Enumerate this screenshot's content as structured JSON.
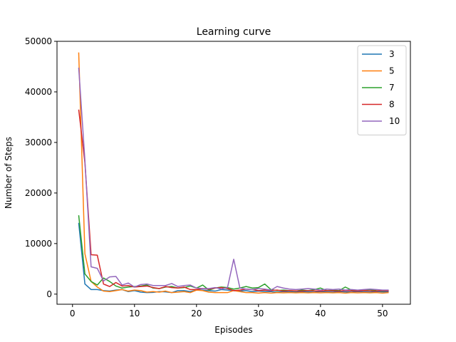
{
  "chart_data": {
    "type": "line",
    "title": "Learning curve",
    "xlabel": "Episodes",
    "ylabel": "Number of Steps",
    "xlim": [
      -2.5,
      54.5
    ],
    "ylim": [
      -2000,
      50000
    ],
    "xticks": [
      0,
      10,
      20,
      30,
      40,
      50
    ],
    "yticks": [
      0,
      10000,
      20000,
      30000,
      40000,
      50000
    ],
    "grid": false,
    "legend_position": "top-right",
    "x": [
      1,
      2,
      3,
      4,
      5,
      6,
      7,
      8,
      9,
      10,
      11,
      12,
      13,
      14,
      15,
      16,
      17,
      18,
      19,
      20,
      21,
      22,
      23,
      24,
      25,
      26,
      27,
      28,
      29,
      30,
      31,
      32,
      33,
      34,
      35,
      36,
      37,
      38,
      39,
      40,
      41,
      42,
      43,
      44,
      45,
      46,
      47,
      48,
      49,
      50,
      51
    ],
    "series": [
      {
        "name": "3",
        "color": "#1f77b4",
        "values": [
          14100,
          2000,
          900,
          900,
          700,
          600,
          800,
          900,
          500,
          700,
          400,
          300,
          350,
          500,
          450,
          300,
          700,
          700,
          500,
          800,
          800,
          700,
          600,
          900,
          800,
          700,
          600,
          700,
          500,
          600,
          500,
          500,
          400,
          500,
          450,
          400,
          500,
          450,
          400,
          500,
          450,
          400,
          500,
          450,
          400,
          500,
          450,
          400,
          500,
          450,
          450
        ]
      },
      {
        "name": "5",
        "color": "#ff7f0e",
        "values": [
          47800,
          8000,
          2500,
          1400,
          600,
          500,
          700,
          900,
          600,
          800,
          700,
          400,
          500,
          400,
          600,
          300,
          400,
          500,
          300,
          800,
          700,
          400,
          300,
          300,
          300,
          700,
          500,
          300,
          300,
          200,
          300,
          200,
          300,
          250,
          300,
          250,
          300,
          250,
          300,
          250,
          300,
          250,
          300,
          200,
          300,
          250,
          300,
          250,
          300,
          200,
          300
        ]
      },
      {
        "name": "7",
        "color": "#2ca02c",
        "values": [
          15600,
          4000,
          2500,
          1800,
          3200,
          2500,
          1600,
          1200,
          1400,
          1500,
          1600,
          1800,
          1200,
          1100,
          1400,
          1500,
          1200,
          1300,
          1600,
          1200,
          1800,
          800,
          1200,
          1400,
          1300,
          1000,
          1200,
          1500,
          1200,
          1300,
          2000,
          900,
          700,
          800,
          700,
          600,
          800,
          700,
          900,
          1200,
          700,
          800,
          700,
          1400,
          800,
          700,
          800,
          900,
          700,
          600,
          700
        ]
      },
      {
        "name": "8",
        "color": "#d62728",
        "values": [
          36500,
          26000,
          7800,
          7700,
          2000,
          1500,
          2300,
          1600,
          1700,
          1400,
          1500,
          1600,
          1300,
          1100,
          1500,
          1300,
          1200,
          1400,
          900,
          900,
          1100,
          1000,
          1200,
          1300,
          1100,
          700,
          800,
          1000,
          900,
          700,
          800,
          700,
          800,
          600,
          700,
          650,
          600,
          700,
          650,
          600,
          700,
          650,
          600,
          700,
          650,
          600,
          700,
          650,
          600,
          700,
          650
        ]
      },
      {
        "name": "10",
        "color": "#9467bd",
        "values": [
          44800,
          26500,
          5400,
          5100,
          2600,
          3400,
          3500,
          1800,
          2200,
          1400,
          1900,
          2000,
          1700,
          1700,
          1700,
          2100,
          1500,
          1700,
          1800,
          1200,
          1100,
          1100,
          1300,
          1000,
          1300,
          6900,
          1200,
          1000,
          900,
          1100,
          1000,
          800,
          1500,
          1200,
          1000,
          900,
          1000,
          1100,
          1000,
          800,
          1000,
          900,
          1000,
          800,
          900,
          800,
          900,
          1000,
          900,
          800,
          800
        ]
      }
    ]
  }
}
